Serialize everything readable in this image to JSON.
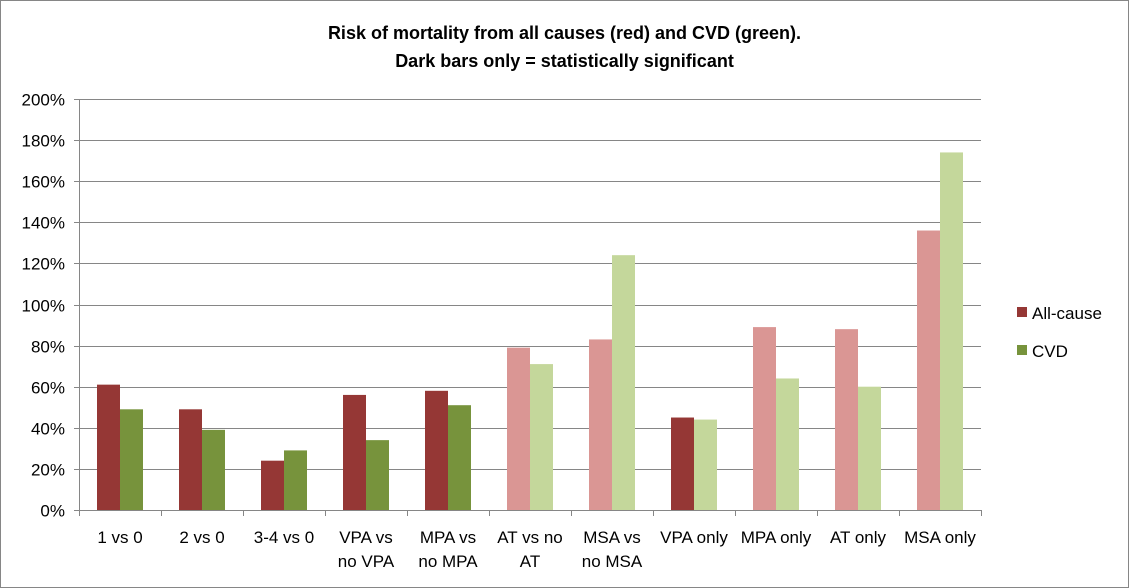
{
  "chart_data": {
    "type": "bar",
    "title_lines": [
      "Risk of mortality from all causes (red) and CVD (green).",
      "Dark bars only = statistically significant"
    ],
    "xlabel": "",
    "ylabel": "",
    "ylim": [
      0,
      200
    ],
    "yticks": [
      0,
      20,
      40,
      60,
      80,
      100,
      120,
      140,
      160,
      180,
      200
    ],
    "ytick_labels": [
      "0%",
      "20%",
      "40%",
      "60%",
      "80%",
      "100%",
      "120%",
      "140%",
      "160%",
      "180%",
      "200%"
    ],
    "grid": true,
    "legend_position": "right",
    "categories": [
      [
        "1 vs 0"
      ],
      [
        "2 vs 0"
      ],
      [
        "3-4 vs 0"
      ],
      [
        "VPA vs",
        "no VPA"
      ],
      [
        "MPA vs",
        "no MPA"
      ],
      [
        "AT vs no",
        "AT"
      ],
      [
        "MSA vs",
        "no MSA"
      ],
      [
        "VPA only"
      ],
      [
        "MPA only"
      ],
      [
        "AT only"
      ],
      [
        "MSA only"
      ]
    ],
    "series": [
      {
        "name": "All-cause",
        "color_significant": "#953735",
        "color_not_significant": "#da9694",
        "values": [
          61,
          49,
          24,
          56,
          58,
          79,
          83,
          45,
          89,
          88,
          136
        ],
        "significant": [
          true,
          true,
          true,
          true,
          true,
          false,
          false,
          true,
          false,
          false,
          false
        ]
      },
      {
        "name": "CVD",
        "color_significant": "#77933c",
        "color_not_significant": "#c4d79b",
        "values": [
          49,
          39,
          29,
          34,
          51,
          71,
          124,
          44,
          64,
          60,
          174
        ],
        "significant": [
          true,
          true,
          true,
          true,
          true,
          false,
          false,
          false,
          false,
          false,
          false
        ]
      }
    ]
  }
}
